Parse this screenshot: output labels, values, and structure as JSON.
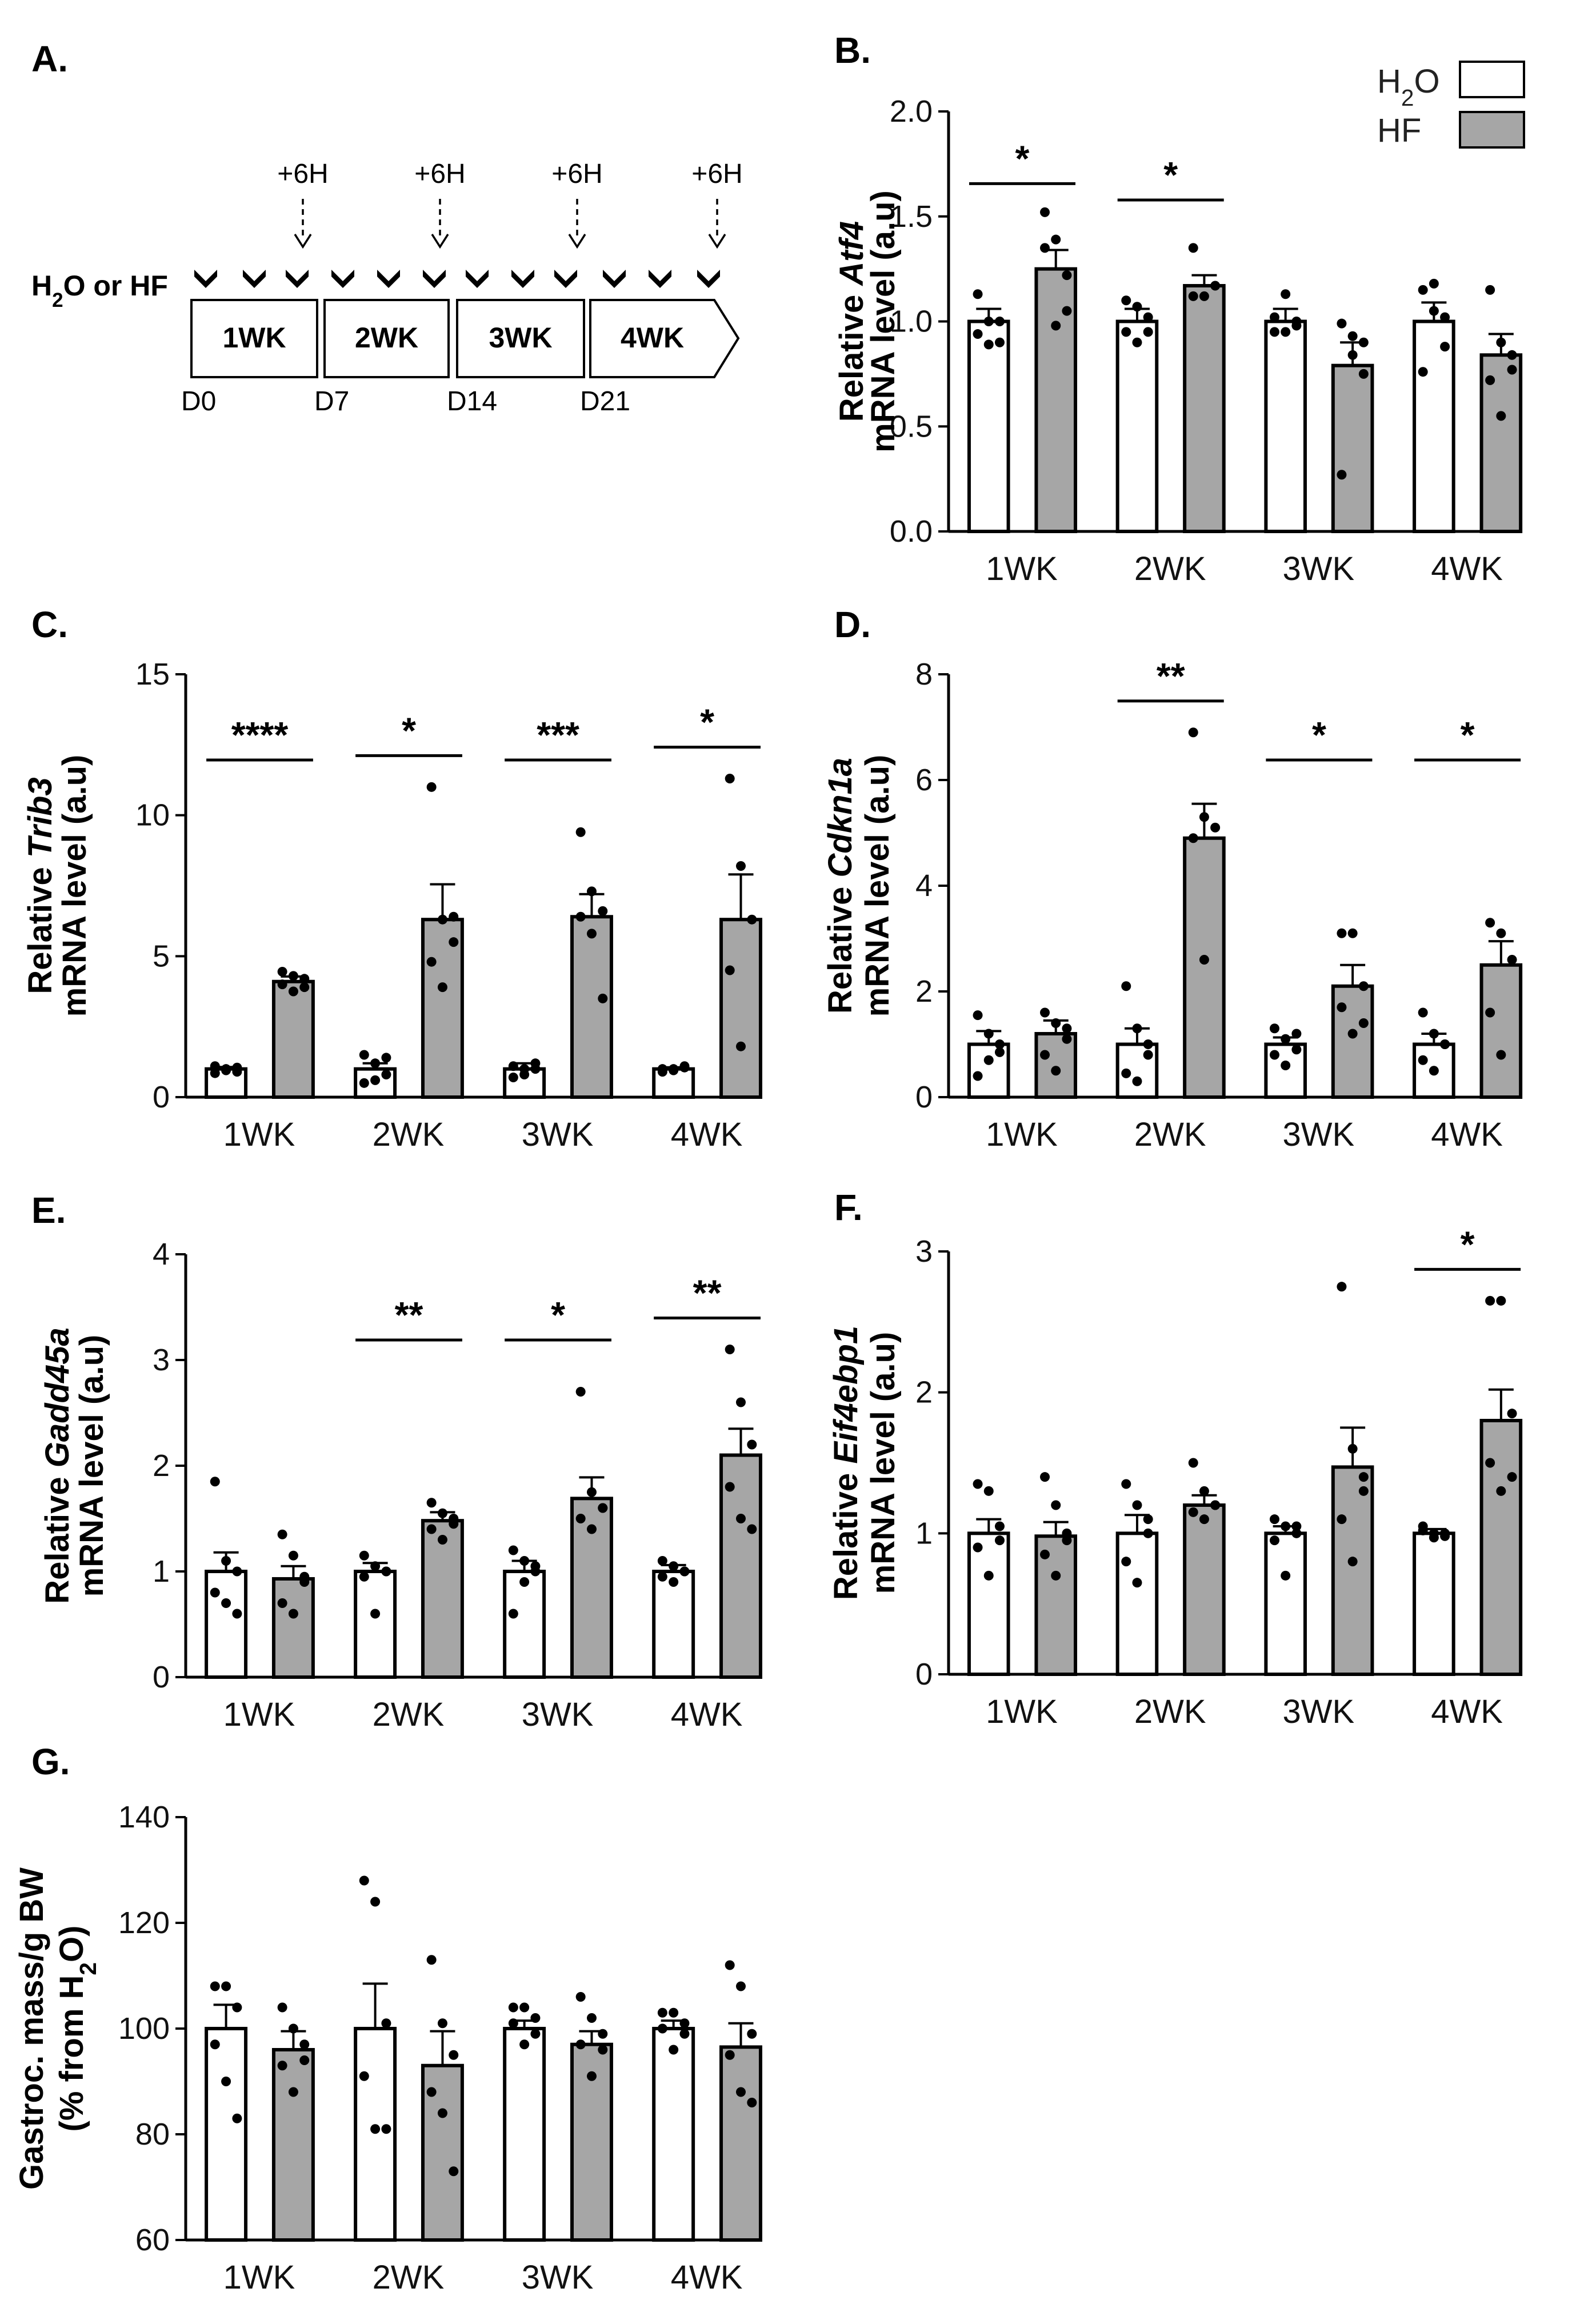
{
  "series_names": [
    "H2O",
    "HF"
  ],
  "legend": {
    "h2o_label": "H2O",
    "hf_label": "HF",
    "h2o_color": "#ffffff",
    "hf_color": "#a6a6a6"
  },
  "panel_a": {
    "letter": "A.",
    "treatment_label": "H2O or HF",
    "weeks": [
      "1WK",
      "2WK",
      "3WK",
      "4WK"
    ],
    "days": [
      "D0",
      "D7",
      "D14",
      "D21"
    ],
    "timepoint_label": "+6H"
  },
  "chart_data": [
    {
      "letter": "B.",
      "type": "bar",
      "ylabel_prefix": "Relative ",
      "gene": "Atf4",
      "ylabel_line2": "mRNA level (a.u)",
      "ylim": [
        0,
        2.0
      ],
      "ticks": [
        "0.0",
        "0.5",
        "1.0",
        "1.5",
        "2.0"
      ],
      "categories": [
        "1WK",
        "2WK",
        "3WK",
        "4WK"
      ],
      "series": [
        {
          "name": "H2O",
          "values": [
            1.0,
            1.0,
            1.0,
            1.0
          ],
          "sem": [
            0.06,
            0.06,
            0.06,
            0.09
          ],
          "points": [
            [
              0.94,
              1.0,
              1.0,
              1.13,
              0.89,
              0.9
            ],
            [
              0.95,
              1.07,
              0.95,
              1.1,
              0.9,
              1.02
            ],
            [
              1.02,
              1.13,
              1.0,
              0.95,
              0.95,
              0.98
            ],
            [
              1.15,
              1.18,
              0.88,
              0.76,
              1.05,
              1.02
            ]
          ]
        },
        {
          "name": "HF",
          "values": [
            1.25,
            1.17,
            0.79,
            0.84
          ],
          "sem": [
            0.09,
            0.05,
            0.11,
            0.1
          ],
          "points": [
            [
              1.52,
              1.39,
              1.22,
              1.35,
              0.98,
              1.05
            ],
            [
              1.35,
              1.12,
              1.17,
              1.12
            ],
            [
              0.99,
              0.93,
              0.75,
              0.27,
              0.84,
              0.9
            ],
            [
              1.15,
              0.9,
              0.84,
              0.72,
              0.55,
              0.77
            ]
          ]
        }
      ],
      "sig": [
        "*",
        "*",
        "",
        ""
      ]
    },
    {
      "letter": "C.",
      "type": "bar",
      "ylabel_prefix": "Relative ",
      "gene": "Trib3",
      "ylabel_line2": "mRNA level (a.u)",
      "ylim": [
        0,
        15
      ],
      "ticks": [
        "0",
        "5",
        "10",
        "15"
      ],
      "categories": [
        "1WK",
        "2WK",
        "3WK",
        "4WK"
      ],
      "series": [
        {
          "name": "H2O",
          "values": [
            1.0,
            1.0,
            1.0,
            1.0
          ],
          "sem": [
            0.07,
            0.2,
            0.2,
            0.06
          ],
          "points": [
            [
              0.85,
              1.0,
              0.9,
              1.1,
              0.95,
              1.05
            ],
            [
              1.5,
              1.2,
              0.8,
              0.5,
              0.6,
              1.4
            ],
            [
              1.1,
              1.0,
              1.2,
              0.7,
              0.8,
              1.0
            ],
            [
              0.9,
              1.0,
              1.1,
              1.0,
              0.95,
              1.05
            ]
          ]
        },
        {
          "name": "HF",
          "values": [
            4.1,
            6.3,
            6.4,
            6.3
          ],
          "sem": [
            0.18,
            1.25,
            0.8,
            1.6
          ],
          "points": [
            [
              4.45,
              4.3,
              3.9,
              4.0,
              3.75,
              4.2
            ],
            [
              11.0,
              6.3,
              5.5,
              4.8,
              3.9,
              6.4
            ],
            [
              9.4,
              7.3,
              6.6,
              6.4,
              5.8,
              3.5
            ],
            [
              11.3,
              8.2,
              6.3,
              4.5,
              1.8
            ]
          ]
        }
      ],
      "sig": [
        "****",
        "*",
        "***",
        "*"
      ]
    },
    {
      "letter": "D.",
      "type": "bar",
      "ylabel_prefix": "Relative ",
      "gene": "Cdkn1a",
      "ylabel_line2": "mRNA level (a.u)",
      "ylim": [
        0,
        8
      ],
      "ticks": [
        "0",
        "2",
        "4",
        "6",
        "8"
      ],
      "categories": [
        "1WK",
        "2WK",
        "3WK",
        "4WK"
      ],
      "series": [
        {
          "name": "H2O",
          "values": [
            1.0,
            1.0,
            1.0,
            1.0
          ],
          "sem": [
            0.25,
            0.3,
            0.13,
            0.2
          ],
          "points": [
            [
              1.55,
              1.2,
              0.85,
              0.4,
              0.7,
              1.0
            ],
            [
              2.1,
              1.3,
              0.8,
              0.45,
              0.3,
              1.0
            ],
            [
              1.3,
              1.1,
              0.9,
              0.8,
              0.6,
              1.2
            ],
            [
              1.6,
              1.2,
              1.0,
              0.7,
              0.5,
              1.0
            ]
          ]
        },
        {
          "name": "HF",
          "values": [
            1.2,
            4.9,
            2.1,
            2.5
          ],
          "sem": [
            0.25,
            0.65,
            0.4,
            0.45
          ],
          "points": [
            [
              1.6,
              1.4,
              1.1,
              0.8,
              0.5,
              1.3
            ],
            [
              6.9,
              5.3,
              5.1,
              4.9,
              2.6
            ],
            [
              3.1,
              3.1,
              2.1,
              1.7,
              1.2,
              1.4
            ],
            [
              3.3,
              3.1,
              2.6,
              1.6,
              0.8
            ]
          ]
        }
      ],
      "sig": [
        "",
        "**",
        "*",
        "*"
      ]
    },
    {
      "letter": "E.",
      "type": "bar",
      "ylabel_prefix": "Relative ",
      "gene": "Gadd45a",
      "ylabel_line2": "mRNA level (a.u)",
      "ylim": [
        0,
        4
      ],
      "ticks": [
        "0",
        "1",
        "2",
        "3",
        "4"
      ],
      "categories": [
        "1WK",
        "2WK",
        "3WK",
        "4WK"
      ],
      "series": [
        {
          "name": "H2O",
          "values": [
            1.0,
            1.0,
            1.0,
            1.0
          ],
          "sem": [
            0.18,
            0.08,
            0.1,
            0.06
          ],
          "points": [
            [
              1.85,
              1.1,
              1.0,
              0.8,
              0.7,
              0.6
            ],
            [
              1.15,
              1.05,
              1.0,
              0.95,
              0.6,
              1.0
            ],
            [
              1.2,
              1.1,
              1.0,
              0.6,
              0.9,
              1.05
            ],
            [
              1.1,
              1.05,
              1.0,
              0.95,
              0.9,
              1.0
            ]
          ]
        },
        {
          "name": "HF",
          "values": [
            0.93,
            1.48,
            1.69,
            2.1
          ],
          "sem": [
            0.12,
            0.08,
            0.2,
            0.25
          ],
          "points": [
            [
              1.35,
              1.15,
              0.95,
              0.7,
              0.6,
              0.9
            ],
            [
              1.65,
              1.55,
              1.45,
              1.4,
              1.3,
              1.5
            ],
            [
              2.7,
              1.75,
              1.6,
              1.5,
              1.4,
              1.6
            ],
            [
              3.1,
              2.6,
              2.2,
              1.8,
              1.5,
              1.4
            ]
          ]
        }
      ],
      "sig": [
        "",
        "**",
        "*",
        "**"
      ]
    },
    {
      "letter": "F.",
      "type": "bar",
      "ylabel_prefix": "Relative ",
      "gene": "Eif4ebp1",
      "ylabel_line2": "mRNA level (a.u)",
      "ylim": [
        0,
        3
      ],
      "ticks": [
        "0",
        "1",
        "2",
        "3"
      ],
      "categories": [
        "1WK",
        "2WK",
        "3WK",
        "4WK"
      ],
      "series": [
        {
          "name": "H2O",
          "values": [
            1.0,
            1.0,
            1.0,
            1.0
          ],
          "sem": [
            0.1,
            0.13,
            0.05,
            0.03
          ],
          "points": [
            [
              1.35,
              1.3,
              1.05,
              0.9,
              0.7,
              0.95
            ],
            [
              1.35,
              1.2,
              1.0,
              0.8,
              0.65,
              1.1
            ],
            [
              1.1,
              1.05,
              1.0,
              0.95,
              0.7,
              1.05
            ],
            [
              1.05,
              1.0,
              0.98,
              1.02,
              0.97,
              1.0
            ]
          ]
        },
        {
          "name": "HF",
          "values": [
            0.98,
            1.2,
            1.47,
            1.8
          ],
          "sem": [
            0.1,
            0.07,
            0.28,
            0.22
          ],
          "points": [
            [
              1.4,
              1.2,
              1.0,
              0.85,
              0.7,
              0.95
            ],
            [
              1.5,
              1.3,
              1.2,
              1.15,
              1.1,
              1.2
            ],
            [
              2.75,
              1.6,
              1.3,
              1.1,
              0.8,
              1.4
            ],
            [
              2.65,
              2.65,
              1.85,
              1.5,
              1.3,
              1.4
            ]
          ]
        }
      ],
      "sig": [
        "",
        "",
        "",
        "*"
      ]
    },
    {
      "letter": "G.",
      "type": "bar",
      "ylabel_line1": "Gastroc. mass/g BW",
      "ylabel_line2": "(% from H2O)",
      "ylim": [
        60,
        140
      ],
      "ticks": [
        "60",
        "80",
        "100",
        "120",
        "140"
      ],
      "categories": [
        "1WK",
        "2WK",
        "3WK",
        "4WK"
      ],
      "series": [
        {
          "name": "H2O",
          "values": [
            100,
            100,
            100,
            100
          ],
          "sem": [
            4.5,
            8.5,
            1.5,
            1.5
          ],
          "points": [
            [
              108,
              108,
              104,
              97,
              90,
              83
            ],
            [
              128,
              124,
              101,
              91,
              81,
              81
            ],
            [
              104,
              104,
              102,
              101,
              97,
              99
            ],
            [
              103,
              103,
              101,
              100,
              96,
              99
            ]
          ]
        },
        {
          "name": "HF",
          "values": [
            96,
            93,
            97,
            96.5
          ],
          "sem": [
            3.5,
            6.5,
            2.5,
            4.5
          ],
          "points": [
            [
              104,
              100,
              97,
              93,
              88,
              94
            ],
            [
              113,
              101,
              95,
              88,
              84,
              73
            ],
            [
              106,
              102,
              99,
              97,
              91,
              96
            ],
            [
              112,
              108,
              99,
              95,
              88,
              86
            ]
          ]
        }
      ],
      "sig": [
        "",
        "",
        "",
        ""
      ]
    }
  ]
}
